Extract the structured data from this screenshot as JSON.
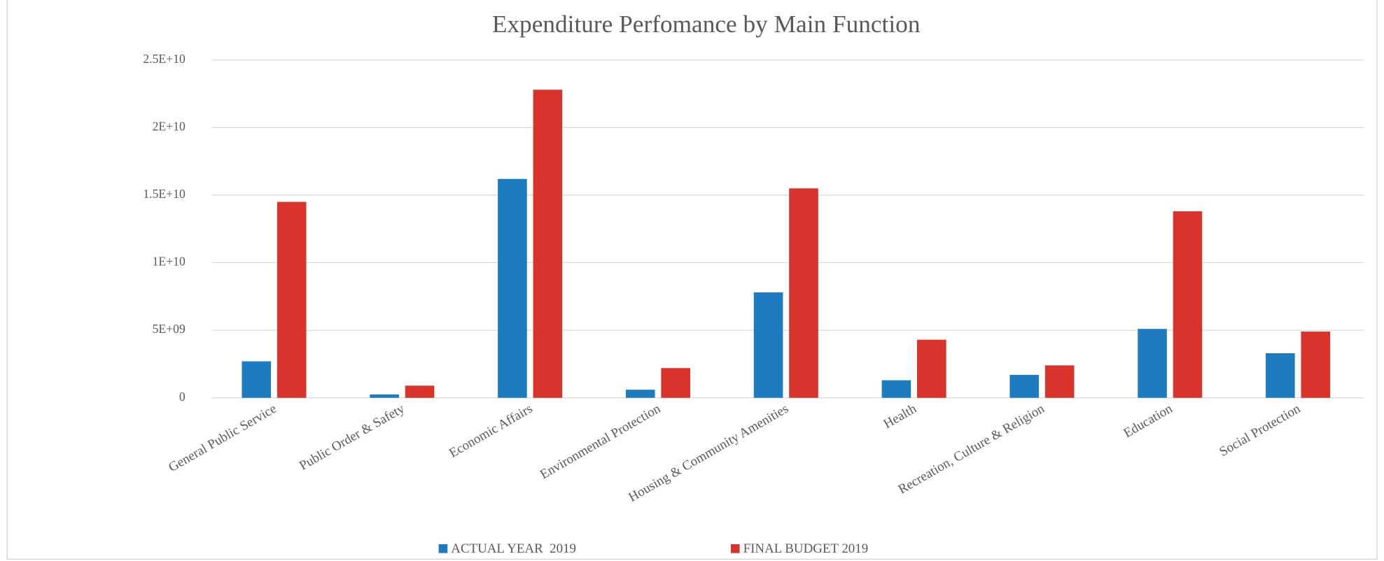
{
  "chart_data": {
    "type": "bar",
    "title": "Expenditure Perfomance by Main Function",
    "categories": [
      "General Public Service",
      "Public Order & Safety",
      "Economic Affairs",
      "Environmental Protection",
      "Housing & Community Amenities",
      "Health",
      "Recreation, Culture & Religion",
      "Education",
      "Social Protection"
    ],
    "series": [
      {
        "name": "ACTUAL YEAR  2019",
        "color": "#1f7bbf",
        "values": [
          2700000000,
          250000000,
          16200000000,
          600000000,
          7800000000,
          1300000000,
          1700000000,
          5100000000,
          3300000000
        ]
      },
      {
        "name": "FINAL BUDGET 2019",
        "color": "#d9342b",
        "values": [
          14500000000,
          900000000,
          22800000000,
          2200000000,
          15500000000,
          4300000000,
          2400000000,
          13800000000,
          4900000000
        ]
      }
    ],
    "ylim": [
      0,
      25000000000
    ],
    "yticks": [
      0,
      {
        "value": 5000000000,
        "label": "5E+09"
      },
      {
        "value": 10000000000,
        "label": "1E+10"
      },
      {
        "value": 15000000000,
        "label": "1.5E+10"
      },
      {
        "value": 20000000000,
        "label": "2E+10"
      },
      {
        "value": 25000000000,
        "label": "2.5E+10"
      }
    ],
    "grid": true,
    "legend": "bottom"
  }
}
